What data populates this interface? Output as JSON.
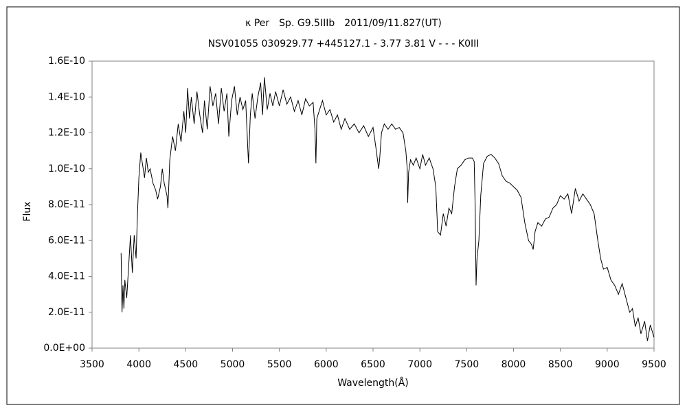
{
  "chart_data": {
    "type": "line",
    "title": "κ Per　Sp. G9.5IIIb　2011/09/11.827(UT)",
    "subtitle": "NSV01055 030929.77 +445127.1 - 3.77 3.81 V - - - K0III",
    "x_label": "Wavelength(Å)",
    "y_label": "Flux",
    "xlim": [
      3500,
      9500
    ],
    "xticks": [
      3500,
      4000,
      4500,
      5000,
      5500,
      6000,
      6500,
      7000,
      7500,
      8000,
      8500,
      9000,
      9500
    ],
    "ylim": [
      0,
      1.6e-10
    ],
    "yticks": [
      {
        "value": 0,
        "label": "0.0E+00"
      },
      {
        "value": 2e-11,
        "label": "2.0E-11"
      },
      {
        "value": 4e-11,
        "label": "4.0E-11"
      },
      {
        "value": 6e-11,
        "label": "6.0E-11"
      },
      {
        "value": 8e-11,
        "label": "8.0E-11"
      },
      {
        "value": 1e-10,
        "label": "1.0E-10"
      },
      {
        "value": 1.2e-10,
        "label": "1.2E-10"
      },
      {
        "value": 1.4e-10,
        "label": "1.4E-10"
      },
      {
        "value": 1.6e-10,
        "label": "1.6E-10"
      }
    ],
    "x": [
      3810,
      3820,
      3830,
      3840,
      3850,
      3870,
      3890,
      3910,
      3930,
      3950,
      3970,
      3985,
      4000,
      4020,
      4040,
      4060,
      4080,
      4100,
      4120,
      4150,
      4180,
      4200,
      4230,
      4250,
      4270,
      4300,
      4310,
      4330,
      4360,
      4390,
      4420,
      4450,
      4480,
      4500,
      4520,
      4540,
      4560,
      4590,
      4620,
      4650,
      4680,
      4700,
      4730,
      4760,
      4790,
      4820,
      4850,
      4880,
      4910,
      4940,
      4960,
      4990,
      5020,
      5050,
      5080,
      5110,
      5140,
      5170,
      5190,
      5210,
      5240,
      5270,
      5300,
      5320,
      5340,
      5370,
      5400,
      5430,
      5460,
      5500,
      5540,
      5580,
      5620,
      5660,
      5700,
      5740,
      5780,
      5820,
      5860,
      5880,
      5890,
      5900,
      5930,
      5960,
      6000,
      6040,
      6080,
      6120,
      6160,
      6200,
      6250,
      6300,
      6350,
      6400,
      6450,
      6500,
      6530,
      6560,
      6570,
      6590,
      6620,
      6660,
      6700,
      6740,
      6780,
      6820,
      6850,
      6865,
      6870,
      6880,
      6900,
      6930,
      6960,
      7000,
      7030,
      7060,
      7100,
      7140,
      7170,
      7190,
      7220,
      7250,
      7280,
      7310,
      7340,
      7370,
      7400,
      7440,
      7480,
      7520,
      7560,
      7580,
      7590,
      7600,
      7610,
      7630,
      7650,
      7680,
      7720,
      7760,
      7800,
      7840,
      7880,
      7920,
      7960,
      8000,
      8040,
      8080,
      8120,
      8160,
      8190,
      8210,
      8230,
      8260,
      8300,
      8340,
      8380,
      8420,
      8460,
      8500,
      8540,
      8580,
      8620,
      8660,
      8700,
      8740,
      8780,
      8820,
      8860,
      8900,
      8930,
      8960,
      9000,
      9040,
      9080,
      9120,
      9160,
      9200,
      9240,
      9270,
      9300,
      9330,
      9360,
      9400,
      9430,
      9460,
      9500
    ],
    "series": [
      {
        "color": "#000000",
        "values": [
          5.3e-11,
          2e-11,
          3.5e-11,
          2.2e-11,
          3.8e-11,
          2.8e-11,
          4.5e-11,
          6.3e-11,
          4.2e-11,
          6.3e-11,
          5e-11,
          7.5e-11,
          9.5e-11,
          1.09e-10,
          1.02e-10,
          9.5e-11,
          1.06e-10,
          9.8e-11,
          1e-10,
          9.2e-11,
          8.8e-11,
          8.3e-11,
          9e-11,
          1e-10,
          9.2e-11,
          8.5e-11,
          7.8e-11,
          1.05e-10,
          1.18e-10,
          1.1e-10,
          1.25e-10,
          1.15e-10,
          1.32e-10,
          1.2e-10,
          1.45e-10,
          1.28e-10,
          1.4e-10,
          1.25e-10,
          1.43e-10,
          1.3e-10,
          1.2e-10,
          1.38e-10,
          1.22e-10,
          1.46e-10,
          1.35e-10,
          1.42e-10,
          1.25e-10,
          1.45e-10,
          1.32e-10,
          1.42e-10,
          1.18e-10,
          1.38e-10,
          1.46e-10,
          1.3e-10,
          1.4e-10,
          1.33e-10,
          1.38e-10,
          1.03e-10,
          1.3e-10,
          1.42e-10,
          1.28e-10,
          1.4e-10,
          1.48e-10,
          1.3e-10,
          1.51e-10,
          1.33e-10,
          1.42e-10,
          1.35e-10,
          1.43e-10,
          1.35e-10,
          1.44e-10,
          1.36e-10,
          1.4e-10,
          1.32e-10,
          1.38e-10,
          1.3e-10,
          1.39e-10,
          1.35e-10,
          1.37e-10,
          1.22e-10,
          1.03e-10,
          1.28e-10,
          1.33e-10,
          1.38e-10,
          1.3e-10,
          1.33e-10,
          1.26e-10,
          1.3e-10,
          1.22e-10,
          1.28e-10,
          1.22e-10,
          1.25e-10,
          1.2e-10,
          1.24e-10,
          1.18e-10,
          1.23e-10,
          1.12e-10,
          1e-10,
          1.05e-10,
          1.2e-10,
          1.25e-10,
          1.22e-10,
          1.25e-10,
          1.22e-10,
          1.23e-10,
          1.2e-10,
          1.1e-10,
          1e-10,
          8.1e-11,
          9.8e-11,
          1.05e-10,
          1.02e-10,
          1.06e-10,
          1e-10,
          1.08e-10,
          1.02e-10,
          1.06e-10,
          1e-10,
          9e-11,
          6.5e-11,
          6.3e-11,
          7.5e-11,
          6.8e-11,
          7.8e-11,
          7.5e-11,
          9e-11,
          1e-10,
          1.02e-10,
          1.05e-10,
          1.06e-10,
          1.06e-10,
          1.04e-10,
          8e-11,
          3.5e-11,
          5e-11,
          6e-11,
          8.5e-11,
          1.03e-10,
          1.07e-10,
          1.08e-10,
          1.06e-10,
          1.03e-10,
          9.6e-11,
          9.3e-11,
          9.2e-11,
          9e-11,
          8.8e-11,
          8.4e-11,
          7e-11,
          6e-11,
          5.8e-11,
          5.5e-11,
          6.5e-11,
          7e-11,
          6.8e-11,
          7.2e-11,
          7.3e-11,
          7.8e-11,
          8e-11,
          8.5e-11,
          8.3e-11,
          8.6e-11,
          7.5e-11,
          8.9e-11,
          8.2e-11,
          8.6e-11,
          8.3e-11,
          8e-11,
          7.5e-11,
          6e-11,
          5e-11,
          4.4e-11,
          4.5e-11,
          3.8e-11,
          3.5e-11,
          3e-11,
          3.6e-11,
          2.8e-11,
          2e-11,
          2.2e-11,
          1.2e-11,
          1.7e-11,
          8e-12,
          1.5e-11,
          4e-12,
          1.3e-11,
          6e-12
        ]
      }
    ]
  }
}
